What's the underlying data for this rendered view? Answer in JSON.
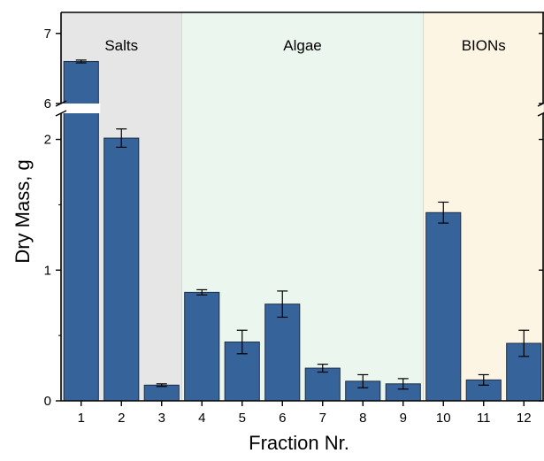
{
  "chart_data": {
    "type": "bar",
    "xlabel": "Fraction Nr.",
    "ylabel": "Dry Mass, g",
    "categories": [
      "1",
      "2",
      "3",
      "4",
      "5",
      "6",
      "7",
      "8",
      "9",
      "10",
      "11",
      "12"
    ],
    "values": [
      6.6,
      2.01,
      0.12,
      0.83,
      0.45,
      0.74,
      0.25,
      0.15,
      0.13,
      1.44,
      0.16,
      0.44
    ],
    "errors": [
      0.02,
      0.07,
      0.01,
      0.02,
      0.09,
      0.1,
      0.03,
      0.05,
      0.04,
      0.08,
      0.04,
      0.1
    ],
    "y_axis": {
      "break": true,
      "lower_range": [
        0,
        2.2
      ],
      "upper_range": [
        6,
        7.3
      ],
      "ticks": [
        0,
        1,
        2,
        6,
        7
      ]
    },
    "regions": [
      {
        "label": "Salts",
        "categories": [
          "1",
          "2",
          "3"
        ],
        "color": "#e6e6e6"
      },
      {
        "label": "Algae",
        "categories": [
          "4",
          "5",
          "6",
          "7",
          "8",
          "9"
        ],
        "color": "#eaf6ee"
      },
      {
        "label": "BIONs",
        "categories": [
          "10",
          "11",
          "12"
        ],
        "color": "#fdf5e4"
      }
    ],
    "bar_color": "#36639a",
    "grid": false,
    "legend": "none"
  }
}
